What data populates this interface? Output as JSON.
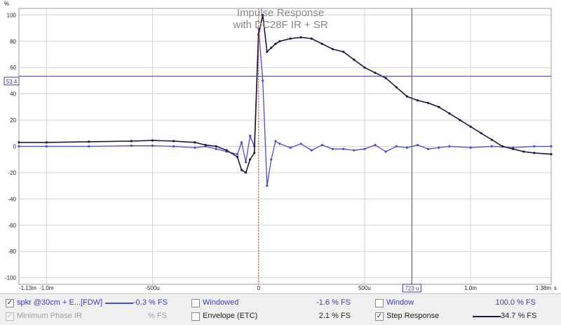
{
  "chart": {
    "title_line1": "Impulse Response",
    "title_line2": "with DC28F IR + SR",
    "y_unit": "%",
    "x_unit": "s",
    "cursor_y_label": "53.4",
    "cursor_x_label": "723 u",
    "colors": {
      "ir": "#4a4ad8",
      "step": "#1a1a40",
      "cursor": "#3c3c9c",
      "zero_marker": "#c84a30",
      "grid": "#d4d4d4"
    }
  },
  "chart_data": {
    "type": "line",
    "title": "Impulse Response with DC28F IR + SR",
    "xlabel": "s",
    "ylabel": "%",
    "xlim": [
      -1.13,
      1.38
    ],
    "ylim": [
      -105,
      105
    ],
    "x_unit_note": "ms",
    "x_tick_labels": [
      "-1.13m",
      "-1.0m",
      "-500u",
      "0",
      "500u",
      "1.0m",
      "1.38m"
    ],
    "x_tick_values": [
      -1.13,
      -1.0,
      -0.5,
      0,
      0.5,
      1.0,
      1.38
    ],
    "y_tick_values": [
      100,
      80,
      60,
      40,
      20,
      0,
      -20,
      -40,
      -60,
      -80,
      -100
    ],
    "cursor": {
      "x": 0.723,
      "y": 53.4
    },
    "series": [
      {
        "name": "spkr @30cm + E...[FDW]",
        "color": "#4a4ad8",
        "points": [
          [
            -1.13,
            0
          ],
          [
            -1.0,
            0
          ],
          [
            -0.8,
            0
          ],
          [
            -0.6,
            0.5
          ],
          [
            -0.5,
            0.5
          ],
          [
            -0.4,
            0
          ],
          [
            -0.3,
            -1
          ],
          [
            -0.25,
            0
          ],
          [
            -0.2,
            -2
          ],
          [
            -0.15,
            -4
          ],
          [
            -0.1,
            -6
          ],
          [
            -0.08,
            3
          ],
          [
            -0.06,
            -12
          ],
          [
            -0.04,
            8
          ],
          [
            -0.02,
            0
          ],
          [
            0,
            90
          ],
          [
            0.02,
            50
          ],
          [
            0.04,
            -30
          ],
          [
            0.06,
            -10
          ],
          [
            0.08,
            4
          ],
          [
            0.1,
            2
          ],
          [
            0.15,
            -1
          ],
          [
            0.2,
            2
          ],
          [
            0.25,
            -3
          ],
          [
            0.3,
            1
          ],
          [
            0.35,
            -2
          ],
          [
            0.4,
            -2
          ],
          [
            0.45,
            -3
          ],
          [
            0.5,
            -2
          ],
          [
            0.55,
            1
          ],
          [
            0.6,
            -4
          ],
          [
            0.65,
            0
          ],
          [
            0.7,
            -1
          ],
          [
            0.75,
            1
          ],
          [
            0.8,
            -2
          ],
          [
            0.85,
            -1
          ],
          [
            0.9,
            0
          ],
          [
            1.0,
            -1
          ],
          [
            1.1,
            0
          ],
          [
            1.2,
            -1
          ],
          [
            1.3,
            0
          ],
          [
            1.38,
            0
          ]
        ]
      },
      {
        "name": "Step Response",
        "color": "#1a1a40",
        "points": [
          [
            -1.13,
            3
          ],
          [
            -1.0,
            3
          ],
          [
            -0.8,
            3.5
          ],
          [
            -0.6,
            4
          ],
          [
            -0.5,
            4.5
          ],
          [
            -0.4,
            4
          ],
          [
            -0.3,
            3
          ],
          [
            -0.25,
            1
          ],
          [
            -0.2,
            0
          ],
          [
            -0.15,
            -3
          ],
          [
            -0.1,
            -8
          ],
          [
            -0.08,
            -18
          ],
          [
            -0.06,
            -20
          ],
          [
            -0.04,
            -10
          ],
          [
            -0.02,
            -5
          ],
          [
            0,
            85
          ],
          [
            0.02,
            100
          ],
          [
            0.04,
            72
          ],
          [
            0.06,
            75
          ],
          [
            0.08,
            78
          ],
          [
            0.1,
            80
          ],
          [
            0.15,
            82
          ],
          [
            0.2,
            83
          ],
          [
            0.25,
            82
          ],
          [
            0.3,
            78
          ],
          [
            0.35,
            74
          ],
          [
            0.4,
            72
          ],
          [
            0.45,
            66
          ],
          [
            0.5,
            60
          ],
          [
            0.55,
            56
          ],
          [
            0.6,
            52
          ],
          [
            0.65,
            45
          ],
          [
            0.7,
            38
          ],
          [
            0.75,
            35
          ],
          [
            0.8,
            33
          ],
          [
            0.85,
            30
          ],
          [
            0.9,
            25
          ],
          [
            0.95,
            20
          ],
          [
            1.0,
            15
          ],
          [
            1.05,
            10
          ],
          [
            1.1,
            5
          ],
          [
            1.15,
            0
          ],
          [
            1.2,
            -2
          ],
          [
            1.25,
            -4
          ],
          [
            1.3,
            -5
          ],
          [
            1.38,
            -6
          ]
        ]
      }
    ]
  },
  "legend": {
    "row1": [
      {
        "label": "spkr @30cm + E...[FDW]",
        "value": "-0.3 % FS",
        "checked": true,
        "color": "#4a4ad8"
      },
      {
        "label": "Windowed",
        "value": "-1.6 % FS",
        "checked": false
      },
      {
        "label": "Window",
        "value": "100.0 % FS",
        "checked": false
      }
    ],
    "row2": [
      {
        "label": "Minimum Phase IR",
        "value": "% FS",
        "checked": false,
        "enabled": false
      },
      {
        "label": "Envelope (ETC)",
        "value": "2.1 % FS",
        "checked": false
      },
      {
        "label": "Step Response",
        "value": "34.7 % FS",
        "checked": true,
        "color": "#1a1a40"
      }
    ]
  }
}
